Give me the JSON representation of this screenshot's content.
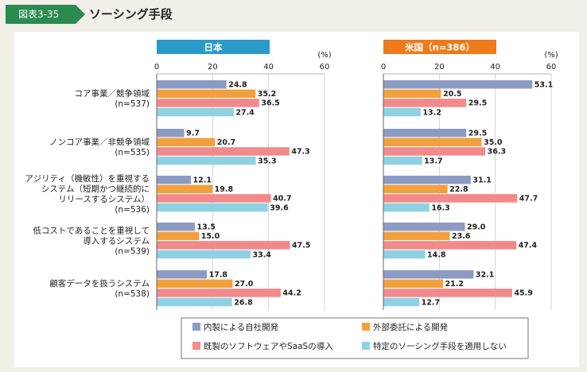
{
  "figure": {
    "number": "図表3-35",
    "title": "ソーシング手段"
  },
  "colors": {
    "in_house": "#8c9bc3",
    "outsourced": "#f0a13d",
    "package_saas": "#f2898a",
    "not_applied": "#8fd1e3",
    "japan_header": "#2b9ac9",
    "us_header": "#ee7a1a"
  },
  "chart_data": [
    {
      "type": "bar",
      "title": "日本",
      "unit": "(%)",
      "xlim": [
        0,
        60
      ],
      "ticks": [
        "0",
        "20",
        "40",
        "60"
      ],
      "categories": [
        [
          "コア事業／競争領域",
          "(n=537)"
        ],
        [
          "ノンコア事業／非競争領域",
          "(n=535)"
        ],
        [
          "アジリティ（機敏性）を重視する",
          "システム（短期かつ継続的に",
          "リリースするシステム）",
          "(n=536)"
        ],
        [
          "低コストであることを重視して",
          "導入するシステム",
          "(n=539)"
        ],
        [
          "顧客データを扱うシステム",
          "(n=538)"
        ]
      ],
      "series": [
        {
          "name": "内製による自社開発",
          "values": [
            24.8,
            9.7,
            12.1,
            13.5,
            17.8
          ],
          "labels": [
            "24.8",
            "9.7",
            "12.1",
            "13.5",
            "17.8"
          ]
        },
        {
          "name": "外部委託による開発",
          "values": [
            35.2,
            20.7,
            19.8,
            15.0,
            27.0
          ],
          "labels": [
            "35.2",
            "20.7",
            "19.8",
            "15.0",
            "27.0"
          ]
        },
        {
          "name": "既製のソフトウェアやSaaSの導入",
          "values": [
            36.5,
            47.3,
            40.7,
            47.5,
            44.2
          ],
          "labels": [
            "36.5",
            "47.3",
            "40.7",
            "47.5",
            "44.2"
          ]
        },
        {
          "name": "特定のソーシング手段を適用しない",
          "values": [
            27.4,
            35.3,
            39.6,
            33.4,
            26.8
          ],
          "labels": [
            "27.4",
            "35.3",
            "39.6",
            "33.4",
            "26.8"
          ]
        }
      ]
    },
    {
      "type": "bar",
      "title": "米国（n=386）",
      "unit": "(%)",
      "xlim": [
        0,
        60
      ],
      "ticks": [
        "0",
        "20",
        "40",
        "60"
      ],
      "series": [
        {
          "name": "内製による自社開発",
          "values": [
            53.1,
            29.5,
            31.1,
            29.0,
            32.1
          ],
          "labels": [
            "53.1",
            "29.5",
            "31.1",
            "29.0",
            "32.1"
          ]
        },
        {
          "name": "外部委託による開発",
          "values": [
            20.5,
            35.0,
            22.8,
            23.6,
            21.2
          ],
          "labels": [
            "20.5",
            "35.0",
            "22.8",
            "23.6",
            "21.2"
          ]
        },
        {
          "name": "既製のソフトウェアやSaaSの導入",
          "values": [
            29.5,
            36.3,
            47.7,
            47.4,
            45.9
          ],
          "labels": [
            "29.5",
            "36.3",
            "47.7",
            "47.4",
            "45.9"
          ]
        },
        {
          "name": "特定のソーシング手段を適用しない",
          "values": [
            13.2,
            13.7,
            16.3,
            14.8,
            12.7
          ],
          "labels": [
            "13.2",
            "13.7",
            "16.3",
            "14.8",
            "12.7"
          ]
        }
      ]
    }
  ],
  "legend": [
    "内製による自社開発",
    "外部委託による開発",
    "既製のソフトウェアやSaaSの導入",
    "特定のソーシング手段を適用しない"
  ]
}
